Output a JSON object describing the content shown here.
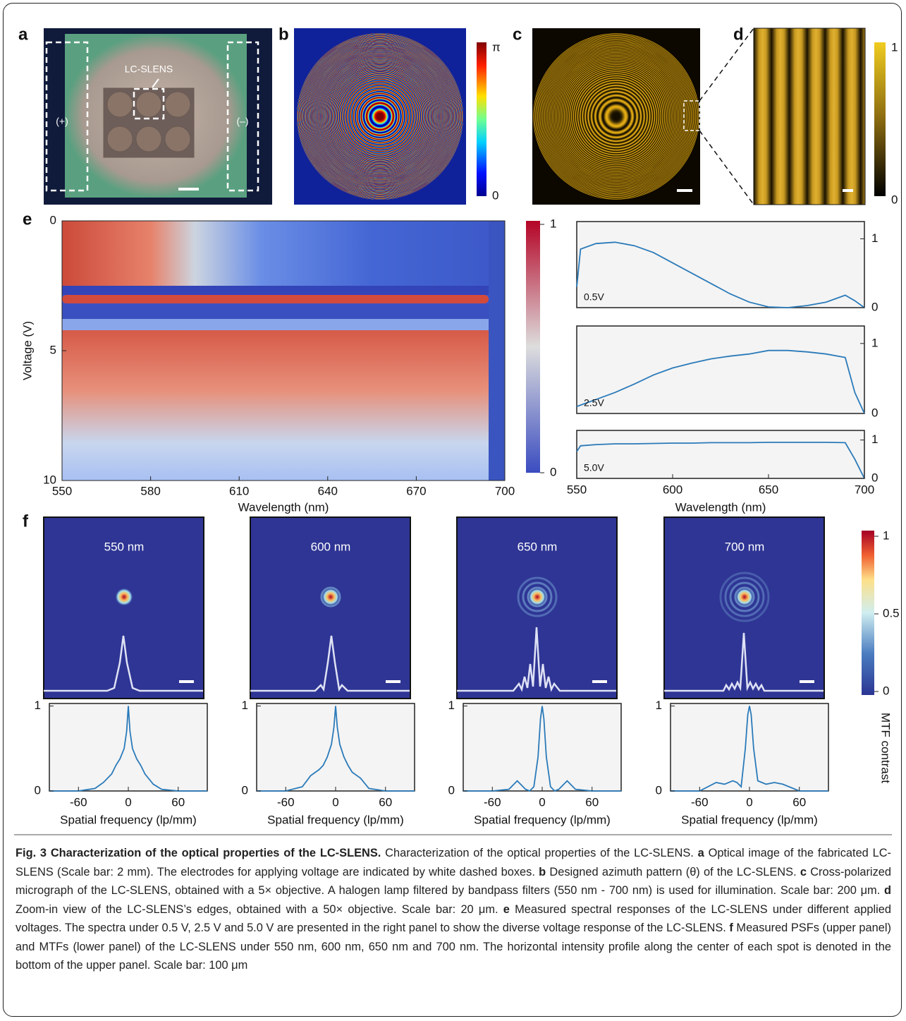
{
  "figure": {
    "panel_labels": [
      "a",
      "b",
      "c",
      "d",
      "e",
      "f"
    ],
    "a": {
      "annotations": [
        "LC-SLENS",
        "(+)",
        "(–)"
      ]
    },
    "b": {
      "colorbar_labels": [
        "π",
        "0"
      ]
    },
    "d": {
      "colorbar_labels": [
        "1",
        "0"
      ]
    },
    "f": {
      "colorbar_ticks": [
        1,
        0.5,
        0
      ]
    }
  },
  "chart_data": [
    {
      "type": "heatmap",
      "xlabel": "Wavelength (nm)",
      "ylabel": "Voltage (V)",
      "xlim": [
        550,
        700
      ],
      "xticks": [
        550,
        580,
        610,
        640,
        670,
        700
      ],
      "ylim": [
        10,
        0
      ],
      "yticks": [
        0,
        5,
        10
      ],
      "colorbar_ticks": [
        1,
        0
      ]
    },
    {
      "type": "line",
      "xlabel": "Wavelength (nm)",
      "xlim": [
        550,
        700
      ],
      "xticks": [
        550,
        600,
        650,
        700
      ],
      "ylim": [
        0,
        1.25
      ],
      "yticks": [
        0,
        1
      ],
      "color": "#2a7ab9",
      "x": [
        550,
        552,
        560,
        570,
        580,
        590,
        600,
        610,
        620,
        630,
        640,
        650,
        660,
        670,
        680,
        690,
        695,
        700
      ],
      "series": [
        {
          "name": "0.5V",
          "values": [
            0.3,
            0.85,
            0.93,
            0.95,
            0.9,
            0.8,
            0.65,
            0.5,
            0.35,
            0.2,
            0.08,
            0.01,
            0,
            0.03,
            0.08,
            0.18,
            0.1,
            0
          ]
        },
        {
          "name": "2.5V",
          "values": [
            0.1,
            0.12,
            0.2,
            0.3,
            0.42,
            0.55,
            0.65,
            0.72,
            0.78,
            0.82,
            0.85,
            0.9,
            0.9,
            0.88,
            0.85,
            0.8,
            0.3,
            0
          ]
        },
        {
          "name": "5.0V",
          "values": [
            0.7,
            0.85,
            0.88,
            0.9,
            0.9,
            0.91,
            0.92,
            0.92,
            0.93,
            0.93,
            0.93,
            0.94,
            0.94,
            0.94,
            0.94,
            0.93,
            0.5,
            0
          ]
        }
      ]
    },
    {
      "type": "line",
      "xlabel": "Spatial frequency (lp/mm)",
      "ylabel": "MTF contrast",
      "xlim": [
        -95,
        95
      ],
      "xticks": [
        -60,
        0,
        60
      ],
      "ylim": [
        0,
        1.03
      ],
      "yticks": [
        0,
        1
      ],
      "color": "#2a7ab9",
      "x": [
        -95,
        -60,
        -40,
        -30,
        -20,
        -15,
        -10,
        -5,
        -2,
        0,
        2,
        5,
        10,
        15,
        20,
        30,
        40,
        60,
        95
      ],
      "series": [
        {
          "name": "550 nm",
          "values": [
            0,
            0,
            0.03,
            0.1,
            0.2,
            0.3,
            0.38,
            0.5,
            0.7,
            1,
            0.7,
            0.5,
            0.38,
            0.3,
            0.2,
            0.08,
            0.02,
            0,
            0
          ]
        },
        {
          "name": "600 nm",
          "values": [
            0,
            0,
            0.05,
            0.18,
            0.25,
            0.3,
            0.4,
            0.55,
            0.75,
            1,
            0.75,
            0.55,
            0.4,
            0.3,
            0.22,
            0.15,
            0.03,
            0,
            0
          ]
        },
        {
          "name": "650 nm",
          "values": [
            0,
            0,
            0.02,
            0.12,
            0.02,
            0,
            0.05,
            0.4,
            0.85,
            1,
            0.85,
            0.4,
            0.05,
            0,
            0.02,
            0.12,
            0.02,
            0,
            0
          ]
        },
        {
          "name": "700 nm",
          "values": [
            0,
            0,
            0.1,
            0.08,
            0.12,
            0.1,
            0.05,
            0.5,
            0.9,
            1,
            0.9,
            0.5,
            0.12,
            0.1,
            0.08,
            0.1,
            0.08,
            0,
            0
          ]
        }
      ]
    }
  ],
  "caption": {
    "parts": [
      {
        "text": "Fig. 3 Characterization of the optical properties of the LC-SLENS.",
        "bold": true
      },
      {
        "text": " Characterization of the optical properties of the LC-SLENS. ",
        "bold": false
      },
      {
        "text": "a",
        "bold": true
      },
      {
        "text": " Optical image of the fabricated LC-SLENS (Scale bar: 2 mm). The electrodes for applying voltage are indicated by white dashed boxes. ",
        "bold": false
      },
      {
        "text": "b",
        "bold": true
      },
      {
        "text": " Designed azimuth pattern (θ) of the LC-SLENS. ",
        "bold": false
      },
      {
        "text": "c",
        "bold": true
      },
      {
        "text": " Cross-polarized micrograph of the LC-SLENS, obtained with a 5× objective. A halogen lamp filtered by bandpass filters (550 nm - 700 nm) is used for illumination. Scale bar: 200 μm. ",
        "bold": false
      },
      {
        "text": "d",
        "bold": true
      },
      {
        "text": " Zoom-in view of the LC-SLENS’s edges, obtained with a 50× objective. Scale bar: 20 μm. ",
        "bold": false
      },
      {
        "text": "e",
        "bold": true
      },
      {
        "text": " Measured spectral responses of the LC-SLENS under different applied voltages. The spectra under 0.5 V, 2.5 V and 5.0 V are presented in the right panel to show the diverse voltage response of the LC-SLENS. ",
        "bold": false
      },
      {
        "text": "f",
        "bold": true
      },
      {
        "text": " Measured PSFs (upper panel) and MTFs (lower panel) of the LC-SLENS under 550 nm, 600 nm, 650 nm and 700 nm. The horizontal intensity profile along the center of each spot is denoted in the bottom of the upper panel. Scale bar: 100 μm",
        "bold": false
      }
    ]
  }
}
